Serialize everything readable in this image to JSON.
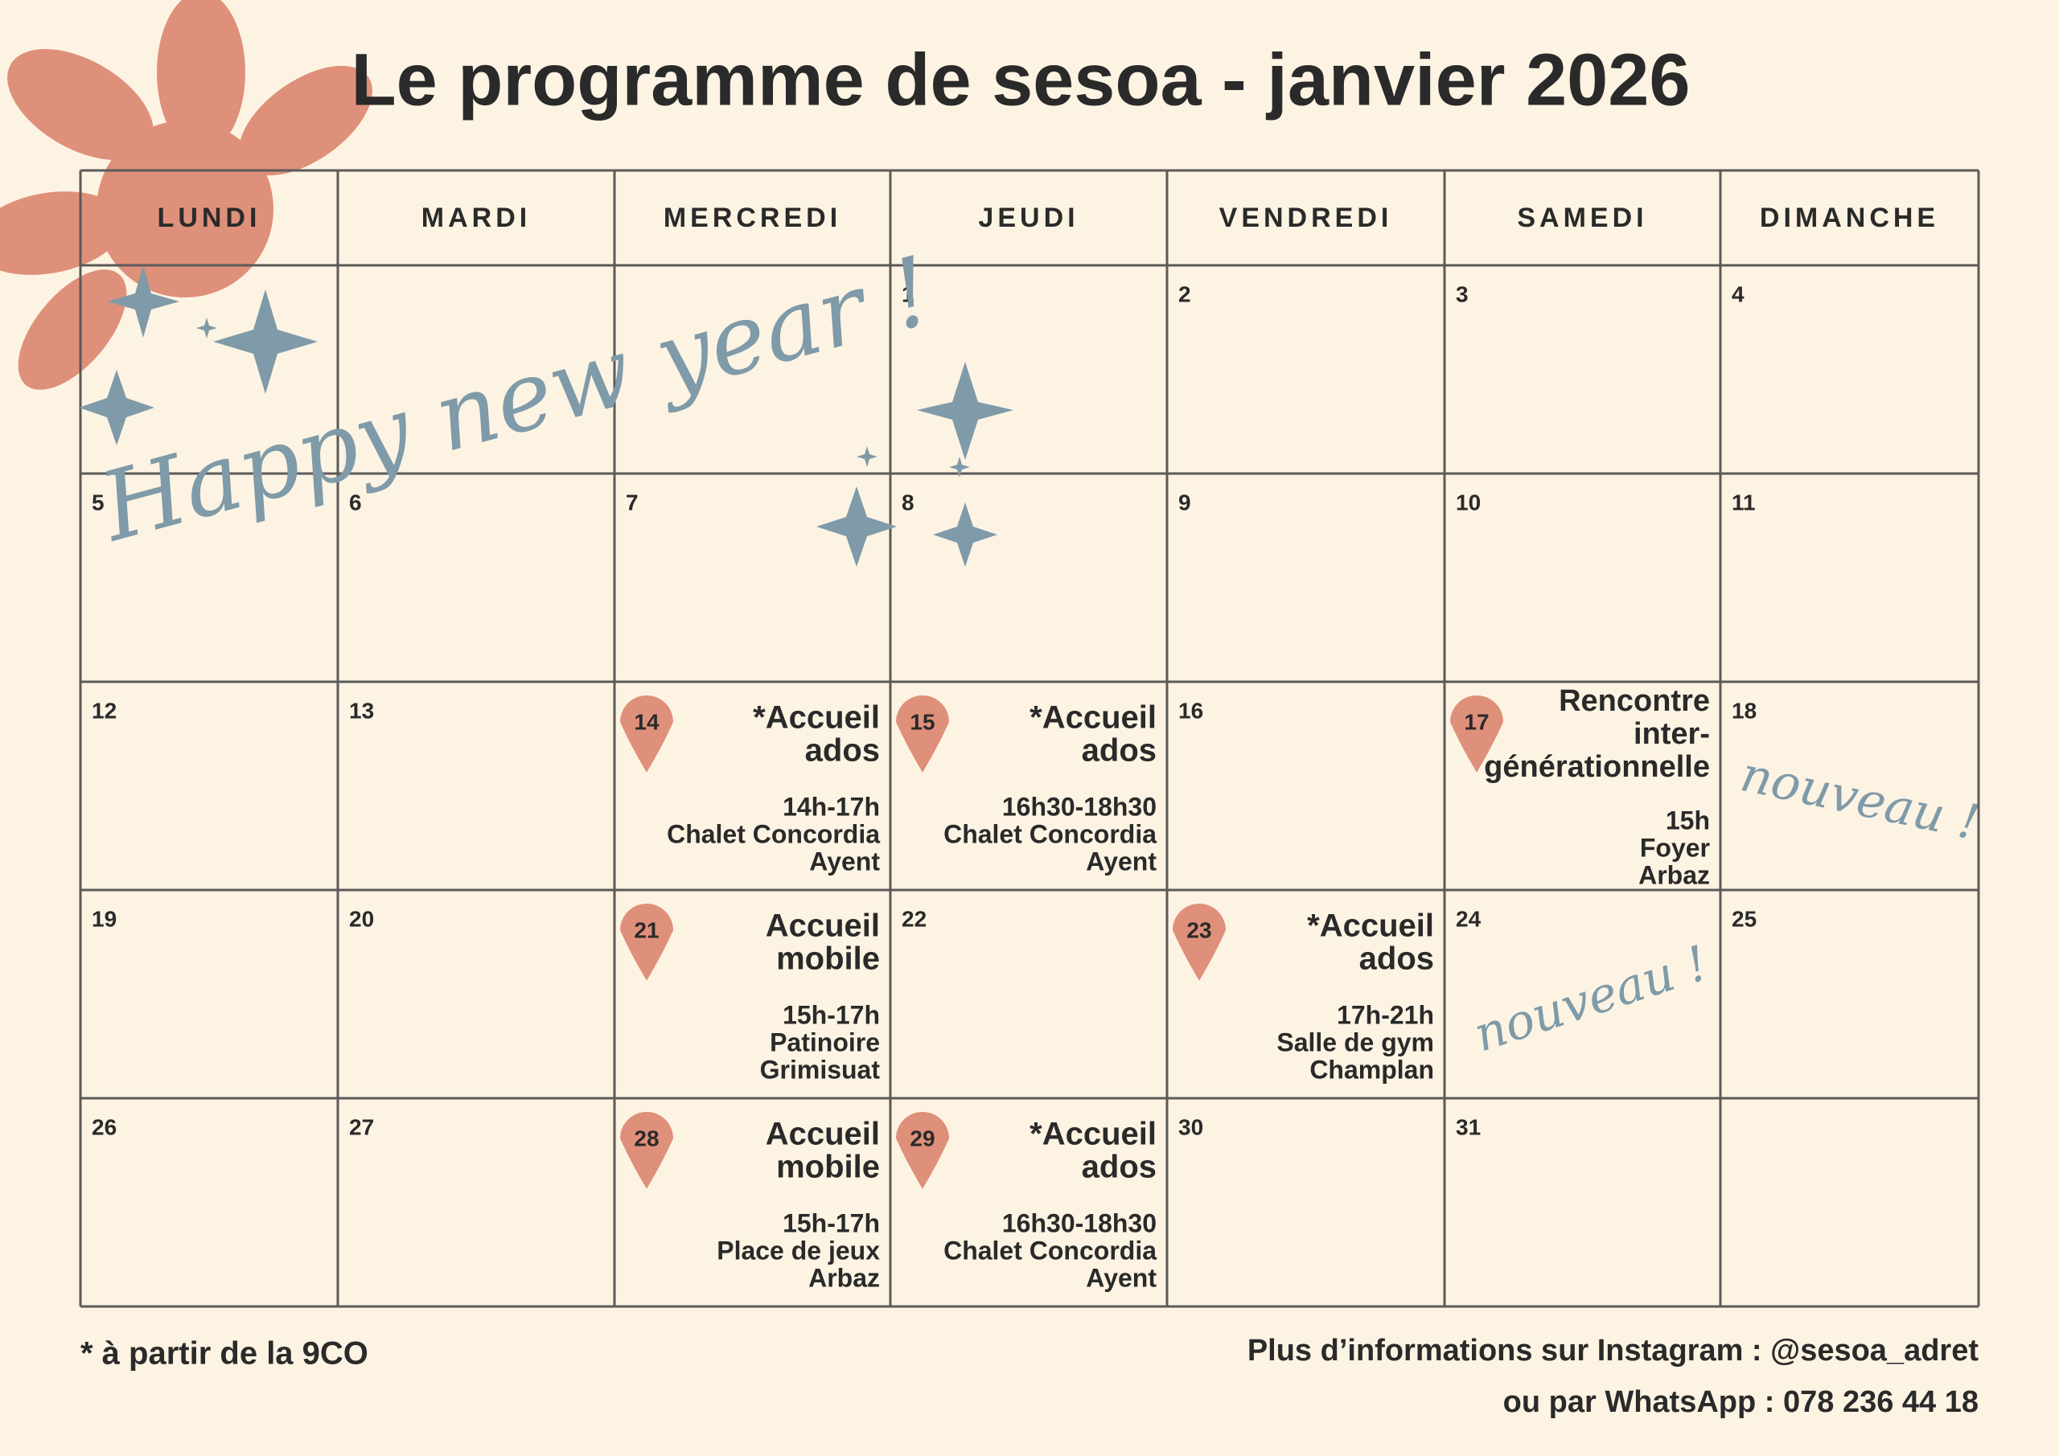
{
  "header": {
    "title": "Le programme de sesoa - janvier 2026"
  },
  "weekdays": [
    "LUNDI",
    "MARDI",
    "MERCREDI",
    "JEUDI",
    "VENDREDI",
    "SAMEDI",
    "DIMANCHE"
  ],
  "weeks": [
    [
      null,
      null,
      null,
      {
        "day": 1
      },
      {
        "day": 2
      },
      {
        "day": 3
      },
      {
        "day": 4
      }
    ],
    [
      {
        "day": 5
      },
      {
        "day": 6
      },
      {
        "day": 7
      },
      {
        "day": 8
      },
      {
        "day": 9
      },
      {
        "day": 10
      },
      {
        "day": 11
      }
    ],
    [
      {
        "day": 12
      },
      {
        "day": 13
      },
      {
        "day": 14,
        "event": {
          "title": [
            "*Accueil",
            "ados"
          ],
          "details": [
            "14h-17h",
            "Chalet Concordia",
            "Ayent"
          ]
        }
      },
      {
        "day": 15,
        "event": {
          "title": [
            "*Accueil",
            "ados"
          ],
          "details": [
            "16h30-18h30",
            "Chalet Concordia",
            "Ayent"
          ]
        }
      },
      {
        "day": 16
      },
      {
        "day": 17,
        "event": {
          "title": [
            "Rencontre",
            "inter-",
            "générationnelle"
          ],
          "details": [
            "15h",
            "Foyer",
            "Arbaz"
          ]
        }
      },
      {
        "day": 18,
        "note": "nouveau !"
      }
    ],
    [
      {
        "day": 19
      },
      {
        "day": 20
      },
      {
        "day": 21,
        "event": {
          "title": [
            "Accueil",
            "mobile"
          ],
          "details": [
            "15h-17h",
            "Patinoire",
            "Grimisuat"
          ]
        }
      },
      {
        "day": 22
      },
      {
        "day": 23,
        "event": {
          "title": [
            "*Accueil",
            "ados"
          ],
          "details": [
            "17h-21h",
            "Salle de gym",
            "Champlan"
          ]
        }
      },
      {
        "day": 24,
        "note": "nouveau !"
      },
      {
        "day": 25
      }
    ],
    [
      {
        "day": 26
      },
      {
        "day": 27
      },
      {
        "day": 28,
        "event": {
          "title": [
            "Accueil",
            "mobile"
          ],
          "details": [
            "15h-17h",
            "Place de jeux",
            "Arbaz"
          ]
        }
      },
      {
        "day": 29,
        "event": {
          "title": [
            "*Accueil",
            "ados"
          ],
          "details": [
            "16h30-18h30",
            "Chalet Concordia",
            "Ayent"
          ]
        }
      },
      {
        "day": 30
      },
      {
        "day": 31
      },
      null
    ]
  ],
  "greeting": "Happy new year !",
  "footer": {
    "note": "* à partir de la 9CO",
    "contact": [
      "Plus d’informations sur Instagram : @sesoa_adret",
      "ou par WhatsApp : 078 236 44 18"
    ]
  }
}
